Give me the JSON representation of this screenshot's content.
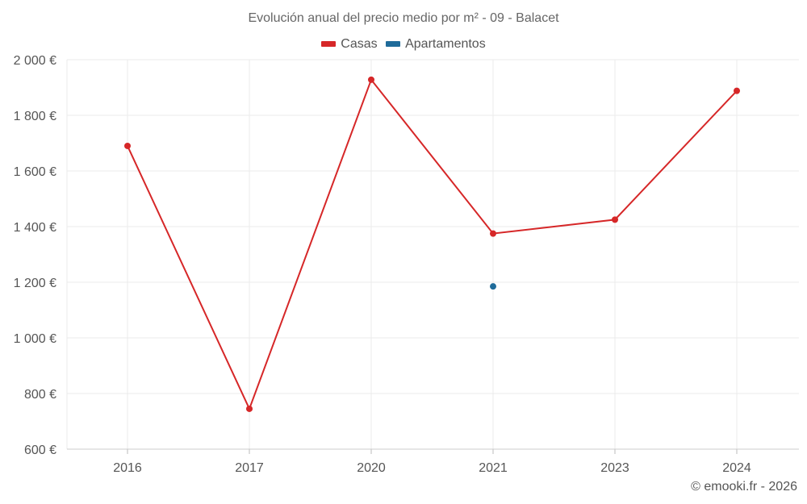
{
  "chart_data": {
    "type": "line",
    "title": "Evolución anual del precio medio por m² - 09 - Balacet",
    "categories": [
      "2016",
      "2017",
      "2020",
      "2021",
      "2023",
      "2024"
    ],
    "y_ticks": [
      "600 €",
      "800 €",
      "1 000 €",
      "1 200 €",
      "1 400 €",
      "1 600 €",
      "1 800 €",
      "2 000 €"
    ],
    "ylim": [
      600,
      2000
    ],
    "series": [
      {
        "name": "Casas",
        "color": "#d62728",
        "values": [
          1690,
          745,
          1928,
          1375,
          1425,
          1888
        ]
      },
      {
        "name": "Apartamentos",
        "color": "#1f6b9a",
        "values": [
          null,
          null,
          null,
          1185,
          null,
          null
        ]
      }
    ],
    "legend_position": "top",
    "grid": true
  },
  "credit": "© emooki.fr - 2026"
}
